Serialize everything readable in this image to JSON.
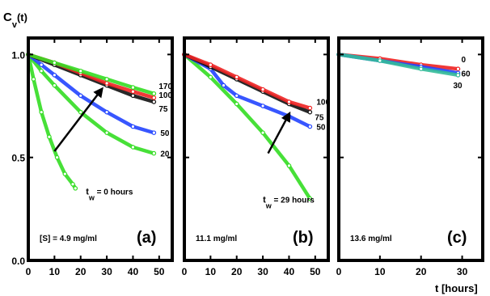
{
  "figure": {
    "ylabel": "C",
    "ylabel_sub": "v",
    "ylabel_arg": "(t)",
    "xlabel": "t [hours]"
  },
  "chart_data": [
    {
      "type": "scatter",
      "panel_label": "(a)",
      "concentration_label": "[S] = 4.9 mg/ml",
      "xlim": [
        0,
        55
      ],
      "ylim": [
        0,
        1.08
      ],
      "xticks": [
        0,
        10,
        20,
        30,
        40,
        50
      ],
      "yticks": [
        0.0,
        0.5,
        1.0
      ],
      "ytick_labels": [
        "0.0",
        "0.5",
        "1.0"
      ],
      "series": [
        {
          "name": "0",
          "color": "#33dd22",
          "x": [
            0,
            2,
            5,
            8,
            11,
            14,
            17,
            18
          ],
          "y": [
            1.0,
            0.88,
            0.72,
            0.6,
            0.5,
            0.42,
            0.37,
            0.35
          ]
        },
        {
          "name": "20",
          "color": "#33dd22",
          "x": [
            0,
            5,
            10,
            20,
            30,
            40,
            48
          ],
          "y": [
            1.0,
            0.92,
            0.85,
            0.72,
            0.62,
            0.55,
            0.52
          ]
        },
        {
          "name": "50",
          "color": "#2244ff",
          "x": [
            0,
            5,
            10,
            20,
            30,
            40,
            48
          ],
          "y": [
            1.0,
            0.95,
            0.9,
            0.8,
            0.72,
            0.65,
            0.62
          ]
        },
        {
          "name": "75",
          "color": "#111111",
          "x": [
            0,
            10,
            20,
            30,
            40,
            48
          ],
          "y": [
            1.0,
            0.95,
            0.9,
            0.85,
            0.8,
            0.77
          ]
        },
        {
          "name": "100",
          "color": "#ee2222",
          "x": [
            0,
            10,
            20,
            30,
            40,
            48
          ],
          "y": [
            1.0,
            0.96,
            0.91,
            0.86,
            0.82,
            0.79
          ]
        },
        {
          "name": "170",
          "color": "#33dd22",
          "x": [
            0,
            10,
            20,
            30,
            40,
            48
          ],
          "y": [
            1.0,
            0.96,
            0.92,
            0.88,
            0.84,
            0.81
          ]
        }
      ],
      "annotations": [
        {
          "type": "arrow",
          "text": "",
          "x0": 10,
          "y0": 0.53,
          "x1": 28,
          "y1": 0.83
        },
        {
          "type": "text",
          "text": "t",
          "sub": "w",
          "suffix": " = 0 hours",
          "x": 22,
          "y": 0.32
        }
      ]
    },
    {
      "type": "scatter",
      "panel_label": "(b)",
      "concentration_label": "11.1 mg/ml",
      "xlim": [
        0,
        55
      ],
      "ylim": [
        0,
        1.08
      ],
      "xticks": [
        0,
        10,
        20,
        30,
        40,
        50
      ],
      "series": [
        {
          "name": "29",
          "color": "#33dd22",
          "x": [
            0,
            10,
            20,
            30,
            40,
            48
          ],
          "y": [
            1.0,
            0.89,
            0.76,
            0.62,
            0.46,
            0.3
          ]
        },
        {
          "name": "50",
          "color": "#2244ff",
          "x": [
            0,
            10,
            15,
            20,
            30,
            40,
            48
          ],
          "y": [
            1.0,
            0.93,
            0.85,
            0.8,
            0.75,
            0.7,
            0.65
          ]
        },
        {
          "name": "75",
          "color": "#111111",
          "x": [
            0,
            10,
            20,
            30,
            40,
            48
          ],
          "y": [
            1.0,
            0.94,
            0.88,
            0.82,
            0.76,
            0.72
          ]
        },
        {
          "name": "100",
          "color": "#ee2222",
          "x": [
            0,
            10,
            20,
            30,
            40,
            48
          ],
          "y": [
            1.0,
            0.95,
            0.89,
            0.83,
            0.77,
            0.74
          ]
        }
      ],
      "annotations": [
        {
          "type": "arrow",
          "text": "",
          "x0": 32,
          "y0": 0.52,
          "x1": 40,
          "y1": 0.71
        },
        {
          "type": "text",
          "text": "t",
          "sub": "w",
          "suffix": " = 29 hours",
          "x": 30,
          "y": 0.28
        }
      ]
    },
    {
      "type": "scatter",
      "panel_label": "(c)",
      "concentration_label": "13.6 mg/ml",
      "xlim": [
        0,
        35
      ],
      "ylim": [
        0,
        1.08
      ],
      "xticks": [
        0,
        10,
        20,
        30
      ],
      "series": [
        {
          "name": "0",
          "color": "#ee2222",
          "x": [
            0,
            10,
            20,
            29
          ],
          "y": [
            1.0,
            0.98,
            0.95,
            0.93
          ]
        },
        {
          "name": "60",
          "color": "#2244ff",
          "x": [
            0,
            10,
            20,
            29
          ],
          "y": [
            1.0,
            0.97,
            0.94,
            0.91
          ]
        },
        {
          "name": "30",
          "color": "#33bb99",
          "x": [
            0,
            10,
            20,
            29
          ],
          "y": [
            1.0,
            0.97,
            0.93,
            0.9
          ]
        }
      ]
    }
  ]
}
